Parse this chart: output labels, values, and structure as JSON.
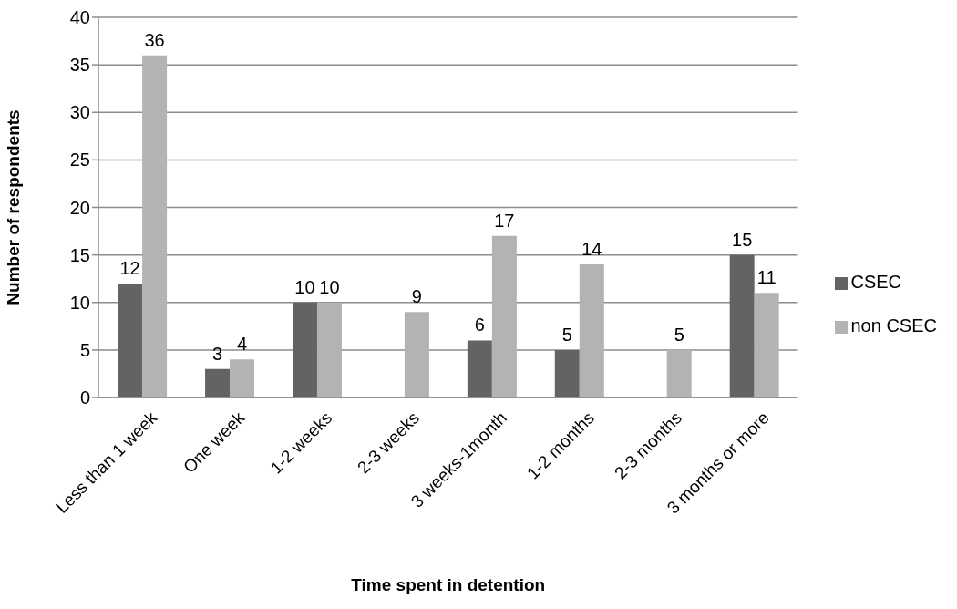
{
  "chart_data": {
    "type": "bar",
    "xlabel": "Time spent in detention",
    "ylabel": "Number of respondents",
    "categories": [
      "Less than 1 week",
      "One week",
      "1-2 weeks",
      "2-3 weeks",
      "3 weeks-1month",
      "1-2 months",
      "2-3 months",
      "3 months or more"
    ],
    "series": [
      {
        "name": "CSEC",
        "color": "#636363",
        "values": [
          12,
          3,
          10,
          null,
          6,
          5,
          null,
          15
        ]
      },
      {
        "name": "non CSEC",
        "color": "#b3b3b3",
        "values": [
          36,
          4,
          10,
          9,
          17,
          14,
          5,
          11
        ]
      }
    ],
    "ylim": [
      0,
      40
    ],
    "yticks": [
      0,
      5,
      10,
      15,
      20,
      25,
      30,
      35,
      40
    ],
    "grid": "y",
    "legend": "right",
    "data_labels": true
  }
}
